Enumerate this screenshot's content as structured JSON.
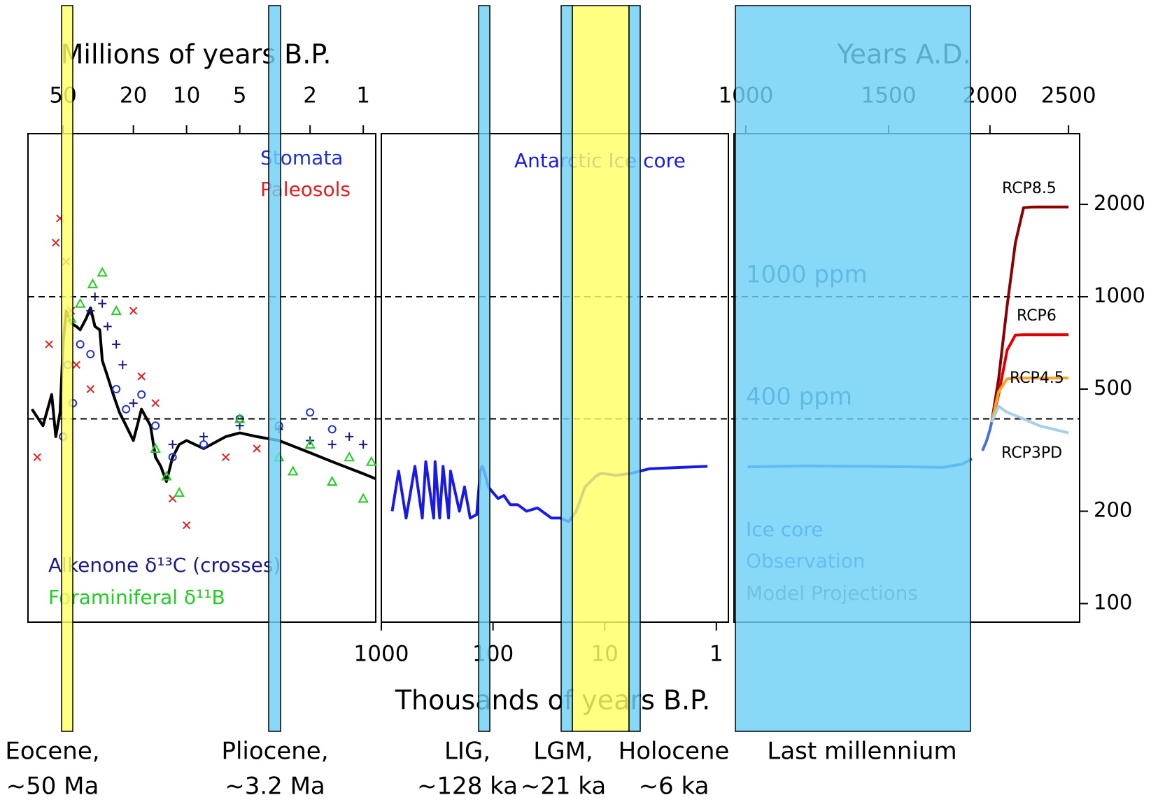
{
  "chart_data": [
    {
      "type": "line",
      "xlabel": "Millions of years B.P.",
      "xscale": "log",
      "xaxis_side": "top",
      "xlim": [
        79,
        0.85
      ],
      "xticks": [
        50,
        20,
        10,
        5,
        2,
        1
      ],
      "yscale": "log",
      "ylim": [
        87,
        3400
      ],
      "series": [
        {
          "color": "#000000",
          "mark": "line",
          "x": [
            75,
            65,
            58,
            55,
            52,
            50,
            48,
            45,
            42,
            40,
            37,
            35,
            33,
            31,
            30,
            28,
            26,
            24,
            22,
            21,
            20,
            18,
            16,
            15,
            14,
            13,
            12,
            11,
            10,
            8,
            6,
            5,
            4,
            3,
            2,
            1.5,
            1,
            0.85
          ],
          "values": [
            430,
            380,
            480,
            350,
            420,
            700,
            900,
            820,
            800,
            780,
            850,
            920,
            800,
            780,
            620,
            550,
            480,
            420,
            380,
            360,
            340,
            430,
            380,
            300,
            280,
            250,
            300,
            330,
            340,
            320,
            350,
            360,
            350,
            340,
            310,
            290,
            265,
            255
          ]
        },
        {
          "name": "Stomata",
          "color": "#2233cc",
          "mark": "circle",
          "x": [
            50,
            47,
            44,
            40,
            35,
            25,
            22,
            18,
            15,
            12,
            8,
            5,
            3,
            2,
            1.5
          ],
          "values": [
            350,
            600,
            450,
            700,
            650,
            500,
            430,
            480,
            380,
            300,
            330,
            400,
            380,
            420,
            370
          ]
        },
        {
          "name": "Paleosols",
          "color": "#e02020",
          "mark": "cross",
          "x": [
            70,
            60,
            55,
            52,
            48,
            45,
            42,
            35,
            20,
            18,
            15,
            12,
            10,
            6,
            4
          ],
          "values": [
            300,
            700,
            1500,
            1800,
            1300,
            900,
            600,
            500,
            900,
            550,
            450,
            220,
            180,
            300,
            320
          ]
        },
        {
          "name": "Alkenone δ¹³C (crosses)",
          "color": "#1a1a80",
          "mark": "plus",
          "x": [
            35,
            33,
            30,
            28,
            25,
            23,
            20,
            12,
            8,
            5,
            3,
            2,
            1.5,
            1.2,
            1
          ],
          "values": [
            900,
            1000,
            950,
            800,
            700,
            600,
            450,
            330,
            350,
            380,
            370,
            340,
            330,
            350,
            330
          ]
        },
        {
          "name": "Foraminiferal δ¹¹B",
          "color": "#22cc22",
          "mark": "triangle",
          "x": [
            45,
            40,
            34,
            30,
            25,
            15,
            13,
            11,
            5,
            3,
            2.5,
            2,
            1.5,
            1.2,
            1,
            0.9
          ],
          "values": [
            850,
            950,
            1100,
            1200,
            900,
            320,
            260,
            230,
            400,
            300,
            270,
            330,
            250,
            300,
            220,
            290
          ]
        }
      ]
    },
    {
      "type": "line",
      "xlabel": "Thousands of years B.P.",
      "xscale": "log",
      "xaxis_side": "bottom",
      "xlim": [
        1000,
        0.78
      ],
      "xticks": [
        1000,
        100,
        10,
        1
      ],
      "yscale": "log",
      "ylim": [
        87,
        3400
      ],
      "series": [
        {
          "name": "Antarctic Ice core",
          "color": "#1a1ae6",
          "mark": "line",
          "x": [
            800,
            700,
            600,
            500,
            430,
            400,
            340,
            330,
            300,
            280,
            250,
            240,
            200,
            180,
            160,
            140,
            130,
            125,
            120,
            110,
            100,
            90,
            80,
            70,
            60,
            50,
            40,
            30,
            25,
            21,
            18,
            15,
            12,
            11,
            10,
            8,
            6,
            4,
            2,
            1.2
          ],
          "values": [
            200,
            270,
            190,
            280,
            190,
            290,
            190,
            290,
            190,
            280,
            190,
            270,
            200,
            240,
            190,
            195,
            270,
            280,
            270,
            240,
            230,
            220,
            225,
            210,
            210,
            200,
            205,
            190,
            190,
            185,
            200,
            240,
            260,
            265,
            265,
            262,
            265,
            275,
            278,
            280
          ]
        }
      ]
    },
    {
      "type": "line",
      "xlabel": "Years A.D.",
      "xscale": "log",
      "xaxis_side": "top",
      "yaxis_side": "right",
      "xlim": [
        967,
        2580
      ],
      "xticks": [
        1000,
        1500,
        2000,
        2500
      ],
      "yscale": "log",
      "ylim": [
        87,
        3400
      ],
      "yticks": [
        100,
        200,
        500,
        1000,
        2000
      ],
      "hlines": [
        {
          "value": 1000,
          "label": "1000 ppm"
        },
        {
          "value": 400,
          "label": "400 ppm"
        }
      ],
      "annotations": [
        "Model Projections"
      ],
      "series": [
        {
          "name": "Ice core",
          "color": "#1f5fe8",
          "mark": "line",
          "x": [
            1005,
            1200,
            1400,
            1600,
            1750,
            1850,
            1900
          ],
          "values": [
            279,
            281,
            280,
            279,
            278,
            285,
            296
          ]
        },
        {
          "name": "Observation",
          "color": "#4a6fd8",
          "mark": "line",
          "x": [
            1958,
            1980,
            2000,
            2010
          ],
          "values": [
            315,
            338,
            369,
            390
          ]
        },
        {
          "name": "RCP8.5",
          "color": "#8b0000",
          "mark": "line",
          "x": [
            2010,
            2050,
            2100,
            2150,
            2200,
            2250,
            2300,
            2500
          ],
          "values": [
            390,
            540,
            935,
            1500,
            1950,
            1960,
            1962,
            1962
          ]
        },
        {
          "name": "RCP6",
          "color": "#e00000",
          "mark": "line",
          "x": [
            2010,
            2050,
            2100,
            2150,
            2200,
            2300,
            2500
          ],
          "values": [
            390,
            480,
            670,
            750,
            752,
            752,
            752
          ]
        },
        {
          "name": "RCP4.5",
          "color": "#f5a623",
          "mark": "line",
          "x": [
            2010,
            2050,
            2100,
            2150,
            2500
          ],
          "values": [
            390,
            490,
            540,
            543,
            543
          ]
        },
        {
          "name": "RCP3PD",
          "color": "#a6d0e4",
          "mark": "line",
          "x": [
            2010,
            2050,
            2100,
            2200,
            2300,
            2500
          ],
          "values": [
            390,
            440,
            420,
            400,
            380,
            360
          ]
        }
      ]
    }
  ],
  "periods": [
    {
      "lines": [
        "Eocene,",
        "~50 Ma"
      ]
    },
    {
      "lines": [
        "Pliocene,",
        "~3.2 Ma"
      ]
    },
    {
      "lines": [
        "LIG,",
        "~128 ka"
      ]
    },
    {
      "lines": [
        "LGM,",
        "~21 ka"
      ]
    },
    {
      "lines": [
        "Holocene",
        "~6 ka"
      ]
    },
    {
      "lines": [
        "Last millennium"
      ]
    }
  ]
}
